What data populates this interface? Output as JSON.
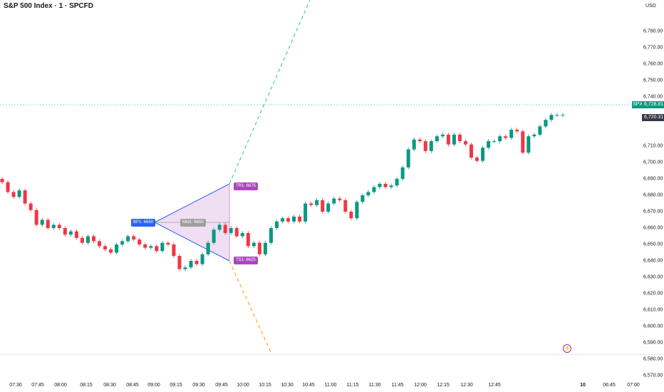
{
  "header": {
    "title": "S&P 500 Index · 1 · SPCFD",
    "currency": "USD"
  },
  "price_scale": {
    "labels": [
      "6,780.00",
      "6,770.00",
      "6,760.00",
      "6,750.00",
      "6,740.00",
      "6,710.00",
      "6,700.00",
      "6,690.00",
      "6,680.00",
      "6,670.00",
      "6,660.00",
      "6,650.00",
      "6,640.00",
      "6,630.00",
      "6,620.00",
      "6,610.00",
      "6,600.00",
      "6,590.00",
      "6,580.00",
      "6,570.00"
    ],
    "symbol_tag": "SPX",
    "last_price": "6,728.81",
    "secondary_price": "6,720.31"
  },
  "time_scale": {
    "labels": [
      "07:30",
      "07:45",
      "08:00",
      "08:15",
      "08:30",
      "08:45",
      "09:00",
      "09:15",
      "09:30",
      "09:45",
      "10:00",
      "10:15",
      "10:30",
      "10:45",
      "11:00",
      "11:15",
      "11:30",
      "11:45",
      "12:00",
      "12:15",
      "12:30",
      "12:45",
      "10",
      "06:45",
      "07:00"
    ]
  },
  "annotations": {
    "tr1": "TR1: 6675",
    "ts1": "TS1: 6625",
    "bp1": "BP1: 6650",
    "mid": "Mid1: 6650"
  },
  "colors": {
    "up": "#089981",
    "down": "#f23645",
    "annotation": "#ab47bc",
    "bp": "#2962ff",
    "target_line": "#26c6a0",
    "stop_line": "#ff9800"
  },
  "chart_data": {
    "type": "candlestick",
    "title": "S&P 500 Index · 1 · SPCFD",
    "ylim": [
      6565,
      6790
    ],
    "series": [
      {
        "values": [
          6688,
          6682,
          6679,
          6683,
          6675,
          6671,
          6662,
          6665,
          6660,
          6662,
          6660,
          6656,
          6658,
          6654,
          6651,
          6655,
          6652,
          6649,
          6647,
          6645,
          6650,
          6652,
          6655,
          6653,
          6650,
          6648,
          6649,
          6646,
          6651,
          6650,
          6643,
          6635,
          6636,
          6640,
          6638,
          6644,
          6651,
          6659,
          6662,
          6657,
          6660,
          6655,
          6657,
          6649,
          6651,
          6644,
          6651,
          6660,
          6664,
          6666,
          6664,
          6667,
          6664,
          6675,
          6674,
          6677,
          6670,
          6675,
          6678,
          6677,
          6670,
          6666,
          6676,
          6680,
          6682,
          6685,
          6687,
          6685,
          6686,
          6690,
          6697,
          6708,
          6714,
          6713,
          6707,
          6713,
          6716,
          6717,
          6711,
          6717,
          6713,
          6711,
          6703,
          6701,
          6709,
          6713,
          6713,
          6716,
          6715,
          6720,
          6719,
          6706,
          6716,
          6717,
          6722,
          6726,
          6729,
          6729,
          6729
        ]
      }
    ]
  }
}
